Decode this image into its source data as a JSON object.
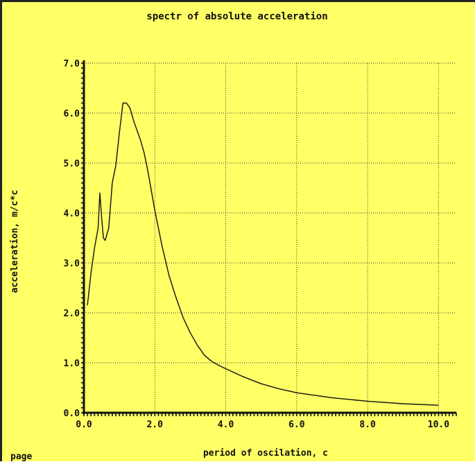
{
  "page_label": "page",
  "chart_data": {
    "type": "line",
    "title": "spectr of absolute acceleration",
    "xlabel": "period of oscilation, c",
    "ylabel": "acceleration, m/c*c",
    "xlim": [
      0,
      10.5
    ],
    "ylim": [
      0,
      7
    ],
    "grid": true,
    "x_ticks": [
      "0.0",
      "2.0",
      "4.0",
      "6.0",
      "8.0",
      "10.0"
    ],
    "y_ticks": [
      "0.0",
      "1.0",
      "2.0",
      "3.0",
      "4.0",
      "5.0",
      "6.0",
      "7.0"
    ],
    "colors": {
      "background": "#ffff66",
      "line": "#111111",
      "grid": "#333333"
    },
    "series": [
      {
        "x": [
          0.1,
          0.2,
          0.3,
          0.4,
          0.45,
          0.5,
          0.55,
          0.6,
          0.7,
          0.8,
          0.9,
          1.0,
          1.1,
          1.2,
          1.3,
          1.4,
          1.5,
          1.6,
          1.7,
          1.8,
          1.9,
          2.0,
          2.2,
          2.4,
          2.6,
          2.8,
          3.0,
          3.2,
          3.4,
          3.6,
          3.8,
          4.0,
          4.5,
          5.0,
          5.5,
          6.0,
          7.0,
          8.0,
          9.0,
          10.0
        ],
        "y": [
          2.15,
          2.8,
          3.3,
          3.7,
          4.4,
          3.9,
          3.5,
          3.45,
          3.7,
          4.6,
          4.95,
          5.6,
          6.2,
          6.2,
          6.1,
          5.85,
          5.65,
          5.45,
          5.2,
          4.85,
          4.45,
          4.05,
          3.35,
          2.75,
          2.3,
          1.9,
          1.6,
          1.35,
          1.15,
          1.03,
          0.95,
          0.88,
          0.72,
          0.58,
          0.48,
          0.4,
          0.3,
          0.23,
          0.18,
          0.15
        ]
      }
    ]
  }
}
